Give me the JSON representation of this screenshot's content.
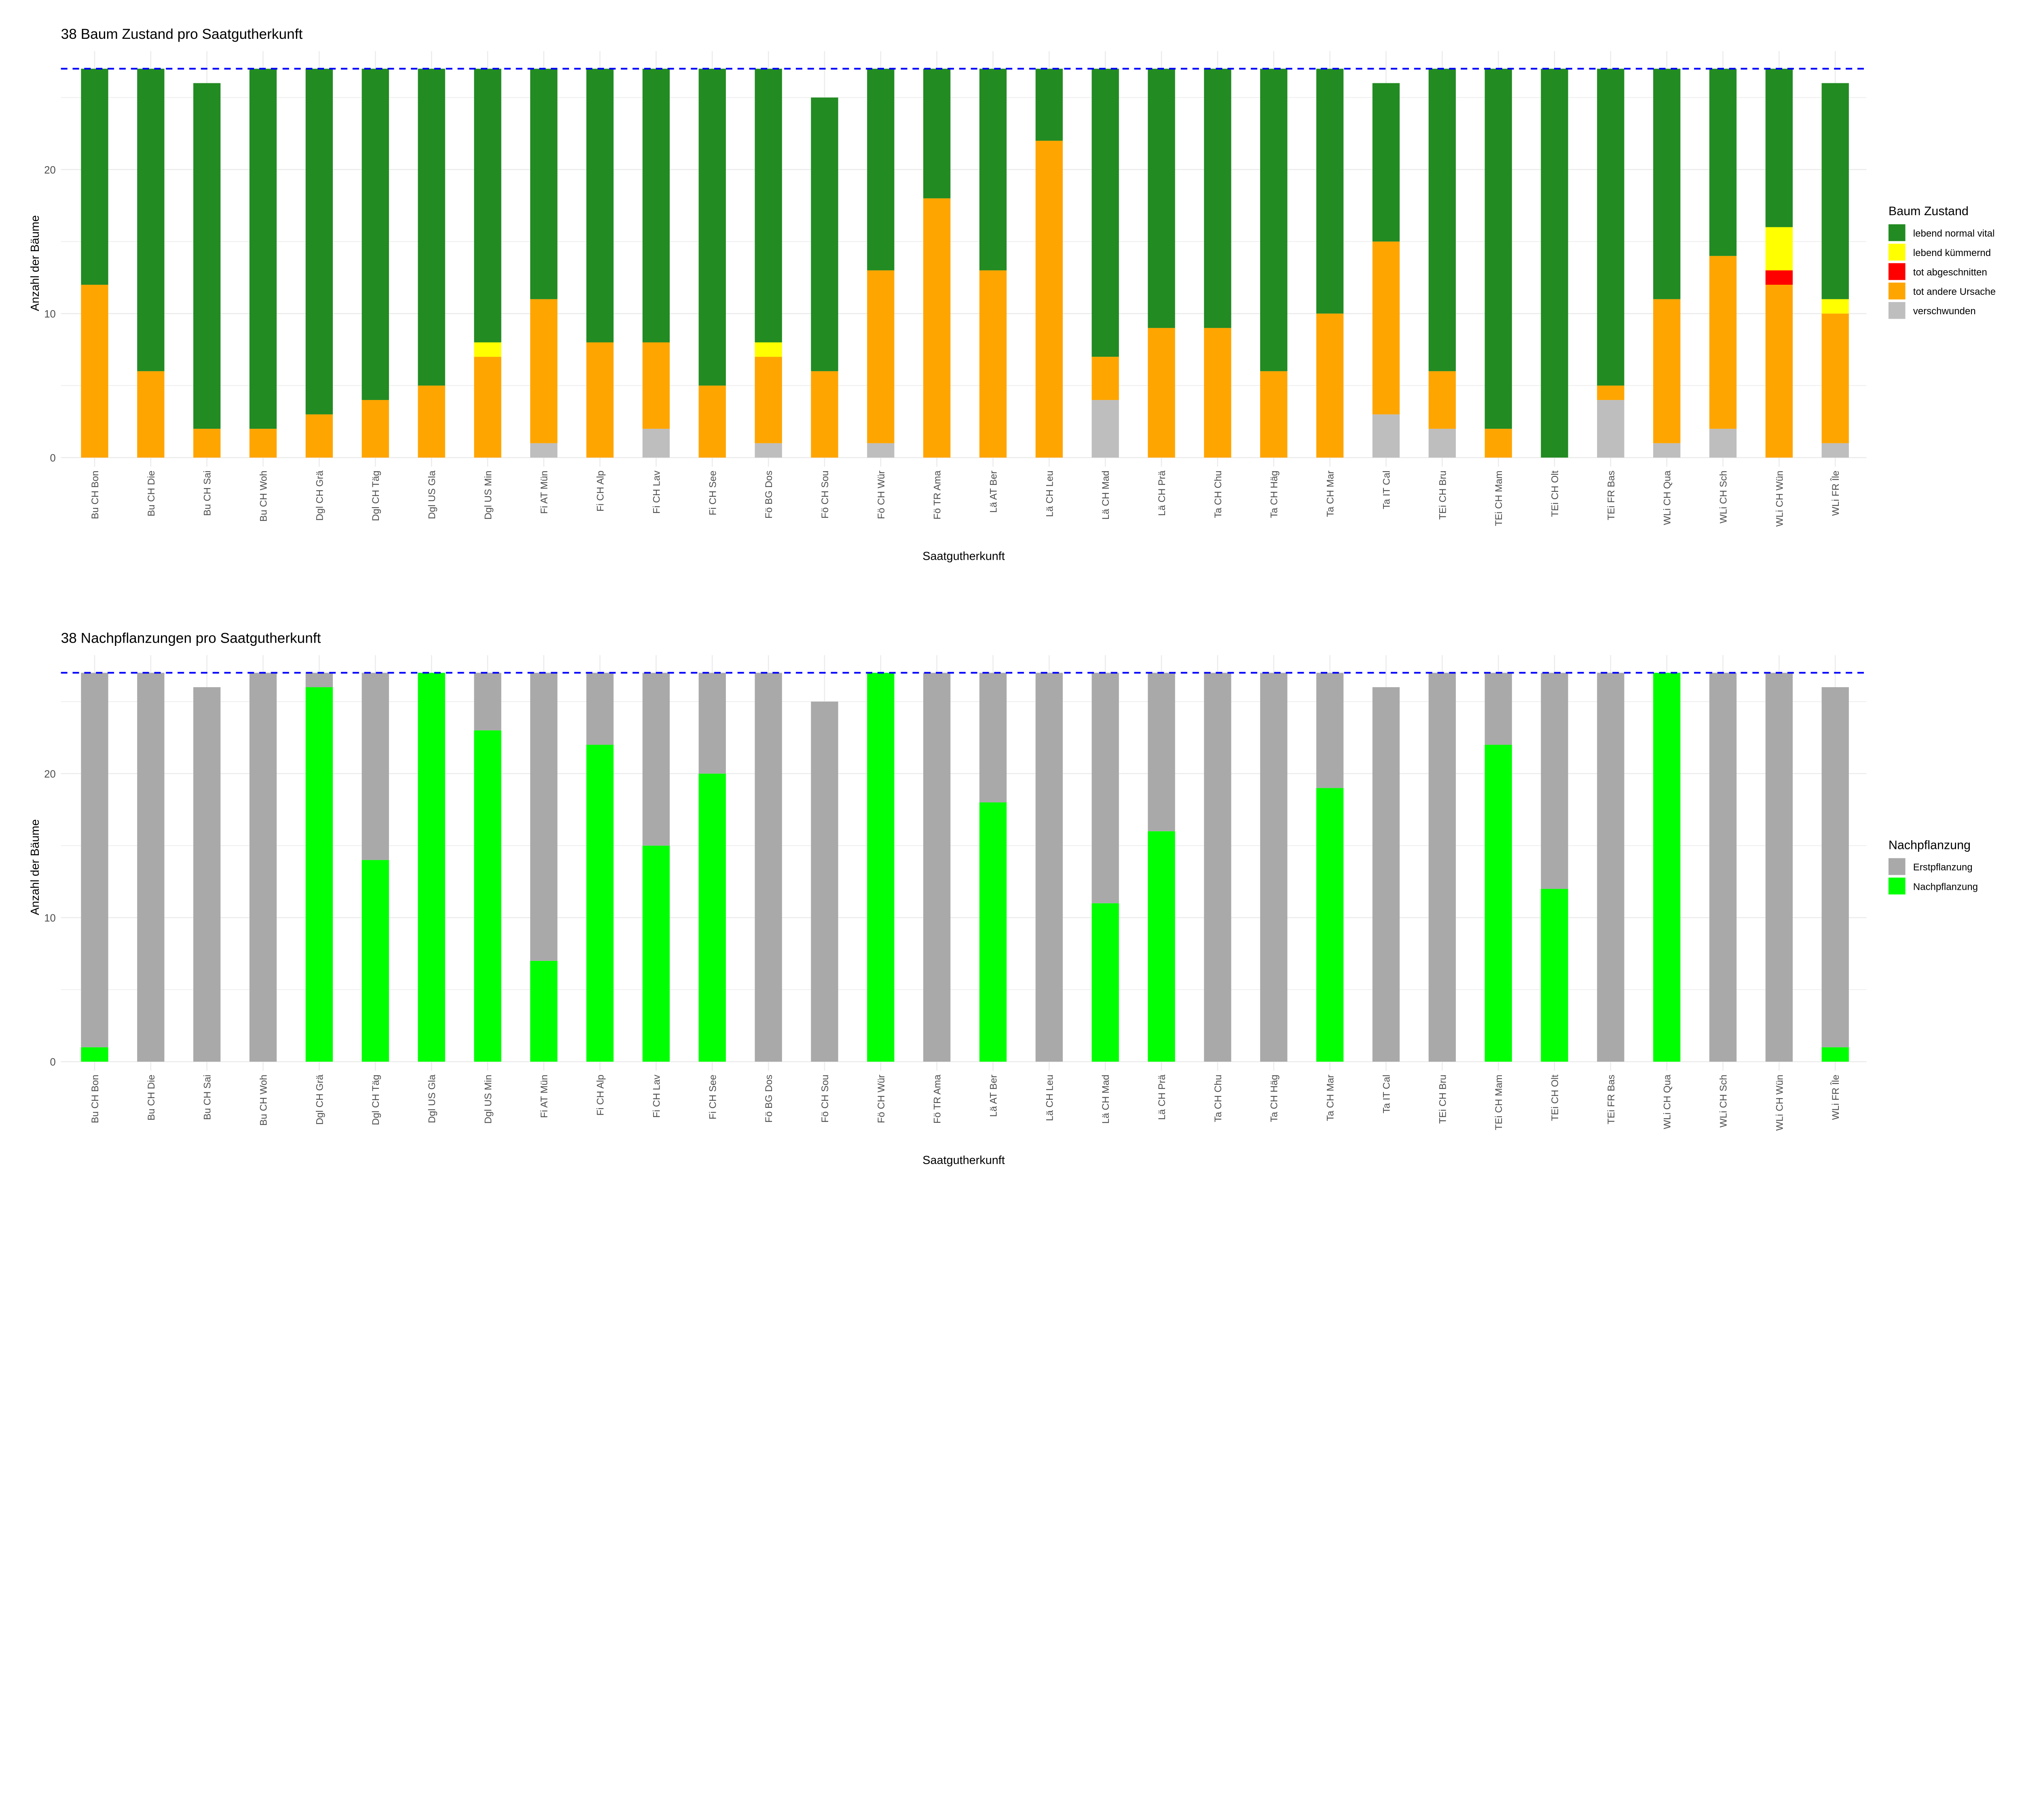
{
  "chart_data": [
    {
      "type": "bar",
      "stacked": true,
      "title": "38 Baum Zustand pro Saatgutherkunft",
      "xlabel": "Saatgutherkunft",
      "ylabel": "Anzahl der Bäume",
      "ylim": [
        0,
        27.5
      ],
      "yticks": [
        "0",
        "10",
        "20"
      ],
      "grid": true,
      "reference_line": {
        "y": 27,
        "color": "#0000FF",
        "style": "dashed"
      },
      "legend": {
        "title": "Baum Zustand",
        "position": "right"
      },
      "categories": [
        "Bu CH Bon",
        "Bu CH Die",
        "Bu CH Sai",
        "Bu CH Woh",
        "Dgl CH Grä",
        "Dgl CH Täg",
        "Dgl US Gla",
        "Dgl US Min",
        "Fi AT Mün",
        "Fi CH Alp",
        "Fi CH Lav",
        "Fi CH See",
        "Fö BG Dos",
        "Fö CH Sou",
        "Fö CH Wür",
        "Fö TR Ama",
        "Lä AT Ber",
        "Lä CH Leu",
        "Lä CH Mad",
        "Lä CH Prä",
        "Ta CH Chu",
        "Ta CH Häg",
        "Ta CH Mar",
        "Ta IT Cal",
        "TEi CH Bru",
        "TEi CH Mam",
        "TEi CH Olt",
        "TEi FR Bas",
        "WLi CH Qua",
        "WLi CH Sch",
        "WLi CH Wün",
        "WLi FR Île"
      ],
      "series": [
        {
          "name": "lebend normal vital",
          "color": "#228B22",
          "values": [
            15,
            21,
            24,
            25,
            24,
            23,
            22,
            19,
            16,
            19,
            19,
            22,
            19,
            19,
            14,
            9,
            14,
            5,
            20,
            18,
            18,
            21,
            17,
            11,
            21,
            25,
            27,
            22,
            16,
            13,
            11,
            15
          ]
        },
        {
          "name": "lebend kümmernd",
          "color": "#FFFF00",
          "values": [
            0,
            0,
            0,
            0,
            0,
            0,
            0,
            1,
            0,
            0,
            0,
            0,
            1,
            0,
            0,
            0,
            0,
            0,
            0,
            0,
            0,
            0,
            0,
            0,
            0,
            0,
            0,
            0,
            0,
            0,
            3,
            1
          ]
        },
        {
          "name": "tot abgeschnitten",
          "color": "#FF0000",
          "values": [
            0,
            0,
            0,
            0,
            0,
            0,
            0,
            0,
            0,
            0,
            0,
            0,
            0,
            0,
            0,
            0,
            0,
            0,
            0,
            0,
            0,
            0,
            0,
            0,
            0,
            0,
            0,
            0,
            0,
            0,
            1,
            0
          ]
        },
        {
          "name": "tot andere Ursache",
          "color": "#FFA500",
          "values": [
            12,
            6,
            2,
            2,
            3,
            4,
            5,
            7,
            10,
            8,
            6,
            5,
            6,
            6,
            12,
            18,
            13,
            22,
            3,
            9,
            9,
            6,
            10,
            12,
            4,
            2,
            0,
            1,
            10,
            12,
            12,
            9
          ]
        },
        {
          "name": "verschwunden",
          "color": "#BEBEBE",
          "values": [
            0,
            0,
            0,
            0,
            0,
            0,
            0,
            0,
            1,
            0,
            2,
            0,
            1,
            0,
            1,
            0,
            0,
            0,
            4,
            0,
            0,
            0,
            0,
            3,
            2,
            0,
            0,
            4,
            1,
            2,
            0,
            1
          ]
        }
      ]
    },
    {
      "type": "bar",
      "stacked": true,
      "title": "38 Nachpflanzungen pro Saatgutherkunft",
      "xlabel": "Saatgutherkunft",
      "ylabel": "Anzahl der Bäume",
      "ylim": [
        0,
        27.5
      ],
      "yticks": [
        "0",
        "10",
        "20"
      ],
      "grid": true,
      "reference_line": {
        "y": 27,
        "color": "#0000FF",
        "style": "dashed"
      },
      "legend": {
        "title": "Nachpflanzung",
        "position": "right"
      },
      "categories": [
        "Bu CH Bon",
        "Bu CH Die",
        "Bu CH Sai",
        "Bu CH Woh",
        "Dgl CH Grä",
        "Dgl CH Täg",
        "Dgl US Gla",
        "Dgl US Min",
        "Fi AT Mün",
        "Fi CH Alp",
        "Fi CH Lav",
        "Fi CH See",
        "Fö BG Dos",
        "Fö CH Sou",
        "Fö CH Wür",
        "Fö TR Ama",
        "Lä AT Ber",
        "Lä CH Leu",
        "Lä CH Mad",
        "Lä CH Prä",
        "Ta CH Chu",
        "Ta CH Häg",
        "Ta CH Mar",
        "Ta IT Cal",
        "TEi CH Bru",
        "TEi CH Mam",
        "TEi CH Olt",
        "TEi FR Bas",
        "WLi CH Qua",
        "WLi CH Sch",
        "WLi CH Wün",
        "WLi FR Île"
      ],
      "series": [
        {
          "name": "Erstpflanzung",
          "color": "#A9A9A9",
          "values": [
            26,
            27,
            26,
            27,
            1,
            13,
            0,
            4,
            20,
            5,
            12,
            7,
            27,
            25,
            0,
            27,
            9,
            27,
            16,
            11,
            27,
            27,
            8,
            26,
            27,
            5,
            15,
            27,
            0,
            27,
            27,
            25
          ]
        },
        {
          "name": "Nachpflanzung",
          "color": "#00FF00",
          "values": [
            1,
            0,
            0,
            0,
            26,
            14,
            27,
            23,
            7,
            22,
            15,
            20,
            0,
            0,
            27,
            0,
            18,
            0,
            11,
            16,
            0,
            0,
            19,
            0,
            0,
            22,
            12,
            0,
            27,
            0,
            0,
            1
          ]
        }
      ]
    }
  ]
}
